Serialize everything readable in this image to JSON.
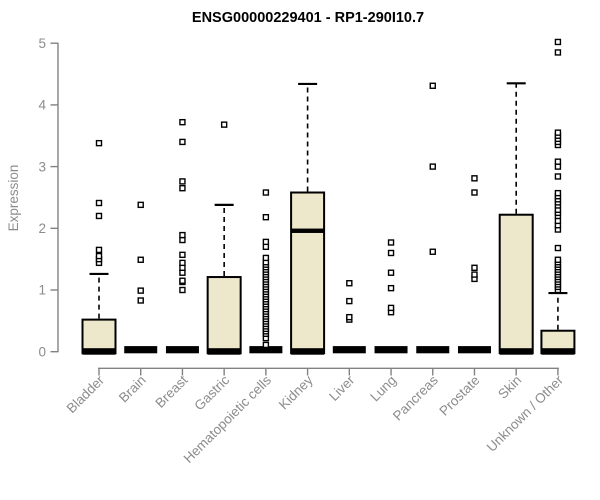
{
  "page": {
    "background": "#ffffff"
  },
  "chart_data": {
    "type": "boxplot",
    "title": "ENSG00000229401 - RP1-290I10.7",
    "ylabel": "Expression",
    "xlabel": "",
    "ylim": [
      0,
      5
    ],
    "yticks": [
      0,
      1,
      2,
      3,
      4,
      5
    ],
    "grid": false,
    "legend": "none",
    "categories": [
      "Bladder",
      "Brain",
      "Breast",
      "Gastric",
      "Hematopoietic cells",
      "Kidney",
      "Liver",
      "Lung",
      "Pancreas",
      "Prostate",
      "Skin",
      "Unknown / Other"
    ],
    "series": [
      {
        "name": "Bladder",
        "whisker_low": 0,
        "q1": 0,
        "median": 0,
        "q3": 0.52,
        "whisker_high": 1.26,
        "outliers": [
          1.44,
          1.5,
          1.55,
          1.65,
          2.2,
          2.41,
          3.38
        ]
      },
      {
        "name": "Brain",
        "whisker_low": 0,
        "q1": 0,
        "median": 0,
        "q3": 0,
        "whisker_high": 0,
        "outliers": [
          0.83,
          0.99,
          1.49,
          2.38
        ]
      },
      {
        "name": "Breast",
        "whisker_low": 0,
        "q1": 0,
        "median": 0,
        "q3": 0,
        "whisker_high": 0,
        "outliers": [
          1.0,
          1.13,
          1.15,
          1.28,
          1.36,
          1.44,
          1.57,
          1.81,
          1.89,
          2.65,
          2.76,
          3.4,
          3.72
        ]
      },
      {
        "name": "Gastric",
        "whisker_low": 0,
        "q1": 0,
        "median": 0,
        "q3": 1.21,
        "whisker_high": 2.38,
        "outliers": [
          3.68
        ]
      },
      {
        "name": "Hematopoietic cells",
        "whisker_low": 0,
        "q1": 0,
        "median": 0,
        "q3": 0,
        "whisker_high": 0,
        "outliers": [
          0.11,
          0.22,
          0.29,
          0.33,
          0.37,
          0.41,
          0.45,
          0.49,
          0.53,
          0.57,
          0.61,
          0.65,
          0.69,
          0.73,
          0.77,
          0.81,
          0.85,
          0.89,
          0.93,
          0.97,
          1.01,
          1.05,
          1.09,
          1.13,
          1.17,
          1.21,
          1.25,
          1.29,
          1.33,
          1.37,
          1.41,
          1.45,
          1.52,
          1.7,
          1.78,
          2.18,
          2.58
        ]
      },
      {
        "name": "Kidney",
        "whisker_low": 0,
        "q1": 0,
        "median": 1.96,
        "q3": 2.58,
        "whisker_high": 4.34,
        "outliers": []
      },
      {
        "name": "Liver",
        "whisker_low": 0,
        "q1": 0,
        "median": 0,
        "q3": 0,
        "whisker_high": 0,
        "outliers": [
          0.52,
          0.56,
          0.82,
          1.11
        ]
      },
      {
        "name": "Lung",
        "whisker_low": 0,
        "q1": 0,
        "median": 0,
        "q3": 0,
        "whisker_high": 0,
        "outliers": [
          0.64,
          0.71,
          1.03,
          1.28,
          1.6,
          1.77
        ]
      },
      {
        "name": "Pancreas",
        "whisker_low": 0,
        "q1": 0,
        "median": 0,
        "q3": 0,
        "whisker_high": 0,
        "outliers": [
          1.62,
          3.0,
          4.31
        ]
      },
      {
        "name": "Prostate",
        "whisker_low": 0,
        "q1": 0,
        "median": 0,
        "q3": 0,
        "whisker_high": 0,
        "outliers": [
          1.18,
          1.25,
          1.36,
          2.58,
          2.81
        ]
      },
      {
        "name": "Skin",
        "whisker_low": 0,
        "q1": 0,
        "median": 0,
        "q3": 2.22,
        "whisker_high": 4.35,
        "outliers": []
      },
      {
        "name": "Unknown / Other",
        "whisker_low": 0,
        "q1": 0,
        "median": 0,
        "q3": 0.34,
        "whisker_high": 0.95,
        "outliers": [
          1.0,
          1.05,
          1.09,
          1.13,
          1.17,
          1.21,
          1.25,
          1.29,
          1.33,
          1.37,
          1.41,
          1.45,
          1.49,
          1.68,
          1.98,
          2.05,
          2.12,
          2.2,
          2.25,
          2.3,
          2.37,
          2.42,
          2.47,
          2.52,
          2.57,
          2.84,
          3.0,
          3.08,
          3.35,
          3.4,
          3.45,
          3.5,
          3.55,
          4.85,
          5.02
        ]
      }
    ],
    "style": {
      "box_fill": "#EDE7CB",
      "box_stroke": "#000000",
      "median_color": "#000000",
      "whisker_color": "#000000",
      "outlier_fill": "#FFFFFF",
      "outlier_stroke": "#000000",
      "axis_color": "#828282",
      "tick_label_color": "#8C8C8C",
      "title_color": "#000000"
    }
  }
}
